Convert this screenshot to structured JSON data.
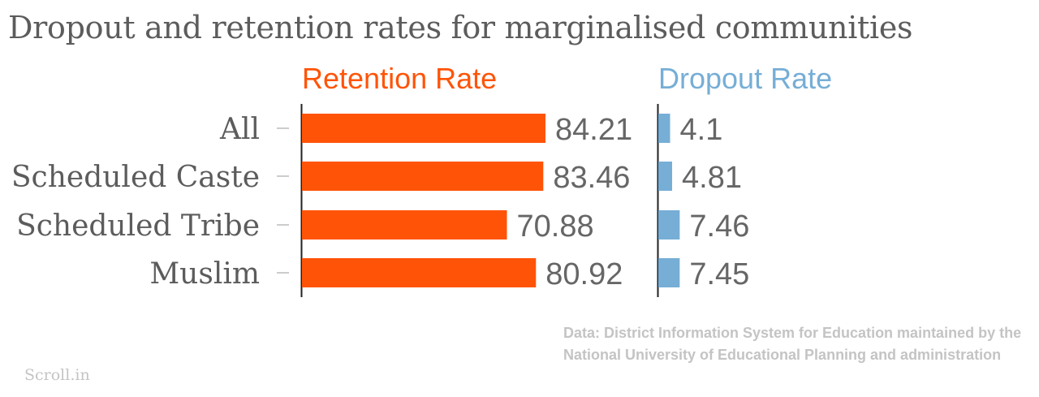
{
  "title": "Dropout and retention rates for marginalised communities",
  "source": "Data: District Information System for Education maintained by the National University of Educational Planning and administration",
  "brand": "Scroll.in",
  "colors": {
    "retention": "#ff5408",
    "dropout": "#76aed6",
    "text": "#5c5c5c",
    "muted": "#c4c4c4"
  },
  "chart_data": {
    "type": "bar",
    "orientation": "horizontal",
    "categories": [
      "All",
      "Scheduled Caste",
      "Scheduled Tribe",
      "Muslim"
    ],
    "series": [
      {
        "name": "Retention Rate",
        "values": [
          84.21,
          83.46,
          70.88,
          80.92
        ],
        "labels": [
          "84.21",
          "83.46",
          "70.88",
          "80.92"
        ],
        "color": "#ff5408"
      },
      {
        "name": "Dropout Rate",
        "values": [
          4.1,
          4.81,
          7.46,
          7.45
        ],
        "labels": [
          "4.1",
          "4.81",
          "7.46",
          "7.45"
        ],
        "color": "#76aed6"
      }
    ],
    "grid": false
  }
}
